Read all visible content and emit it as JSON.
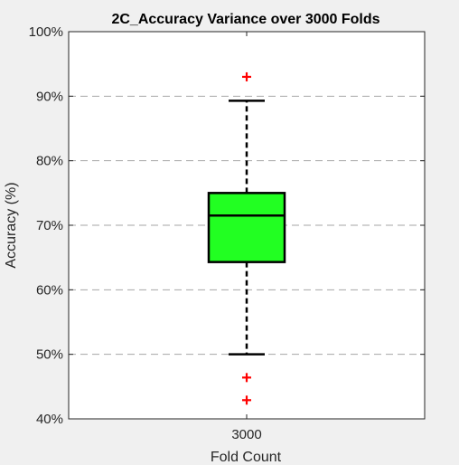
{
  "chart_data": {
    "type": "boxplot",
    "title": "2C_Accuracy Variance over 3000 Folds",
    "xlabel": "Fold Count",
    "ylabel": "Accuracy (%)",
    "categories": [
      "3000"
    ],
    "ylim": [
      40,
      100
    ],
    "yticks": [
      40,
      50,
      60,
      70,
      80,
      90,
      100
    ],
    "ytick_labels": [
      "40%",
      "50%",
      "60%",
      "70%",
      "80%",
      "90%",
      "100%"
    ],
    "grid": "horizontal dashed",
    "boxes": [
      {
        "category": "3000",
        "whisker_low": 50.0,
        "q1": 64.3,
        "median": 71.5,
        "q3": 75.0,
        "whisker_high": 89.3,
        "outliers": [
          93.0,
          46.4,
          42.9
        ]
      }
    ],
    "colors": {
      "box_fill": "#22ff22",
      "outlier": "#ff0000",
      "grid": "#a6a6a6",
      "background": "#f0f0f0",
      "plot_background": "#ffffff"
    }
  }
}
